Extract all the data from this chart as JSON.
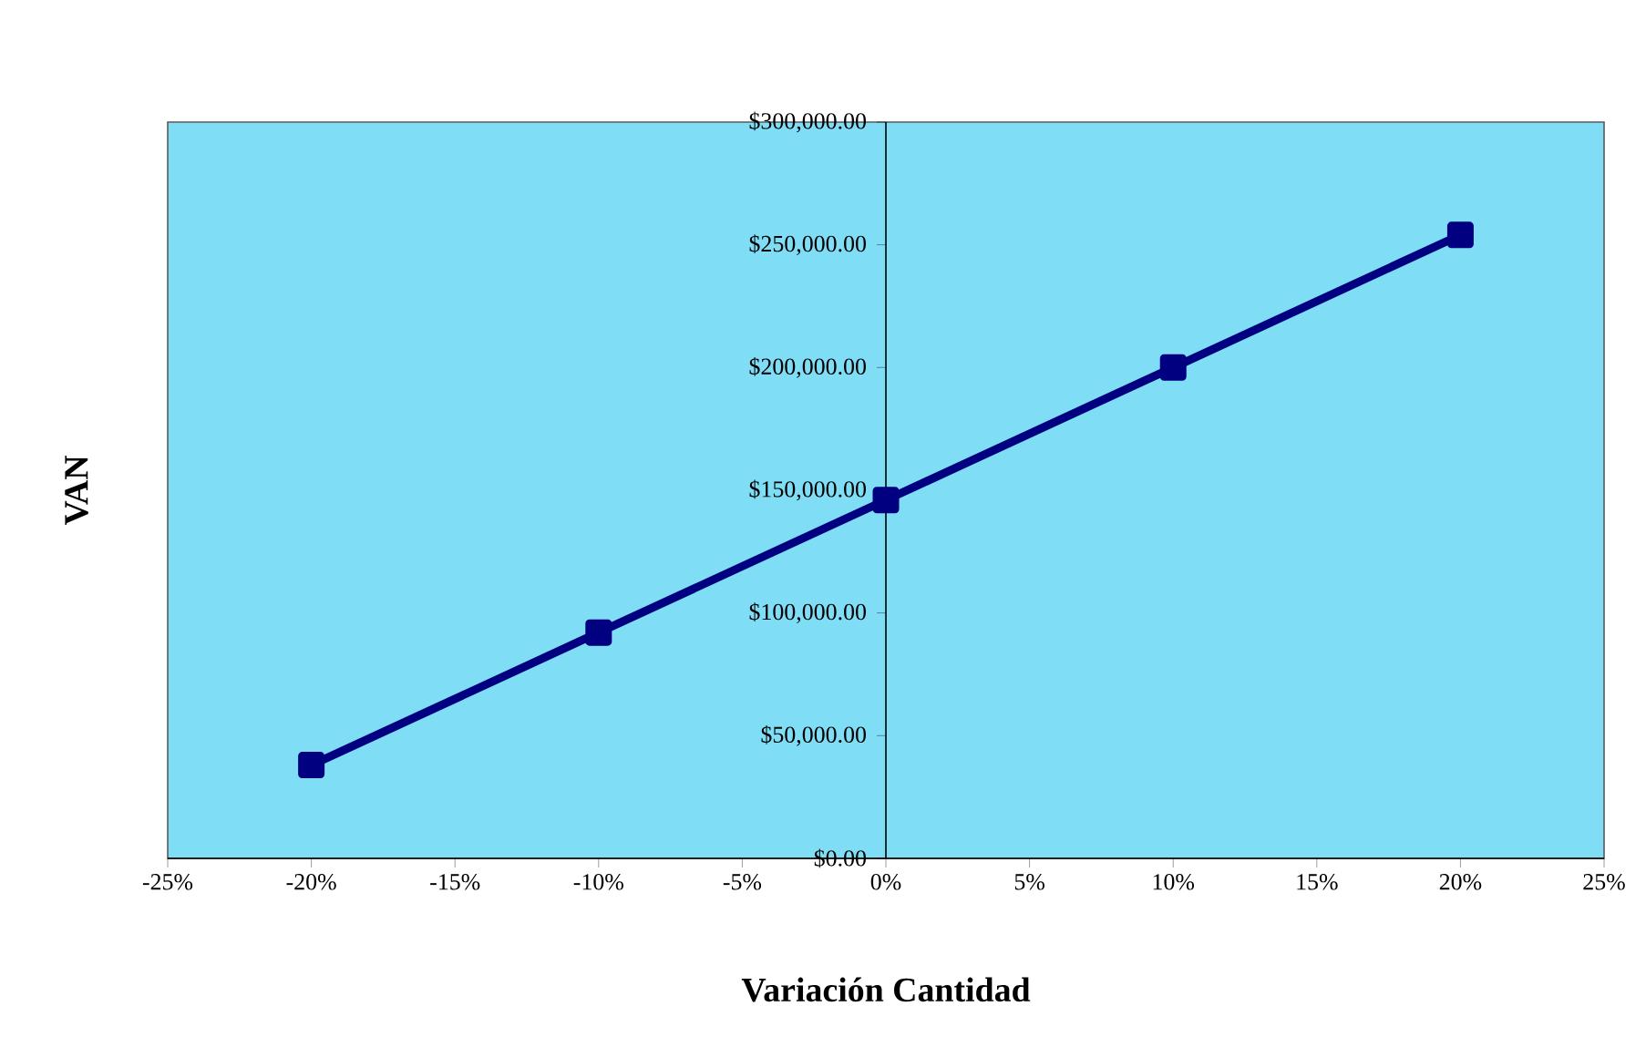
{
  "chart_data": {
    "type": "line",
    "xlabel": "Variación Cantidad",
    "ylabel": "VAN",
    "x": [
      -20,
      -10,
      0,
      10,
      20
    ],
    "series": [
      {
        "color": "#000080",
        "values": [
          38000,
          92000,
          146000,
          200000,
          254000
        ]
      }
    ],
    "marker": "square",
    "line_style": "solid",
    "xlim": [
      -25,
      25
    ],
    "xticks": [
      {
        "value": -25,
        "label": "-25%"
      },
      {
        "value": -20,
        "label": "-20%"
      },
      {
        "value": -15,
        "label": "-15%"
      },
      {
        "value": -10,
        "label": "-10%"
      },
      {
        "value": -5,
        "label": "-5%"
      },
      {
        "value": 0,
        "label": "0%"
      },
      {
        "value": 5,
        "label": "5%"
      },
      {
        "value": 10,
        "label": "10%"
      },
      {
        "value": 15,
        "label": "15%"
      },
      {
        "value": 20,
        "label": "20%"
      },
      {
        "value": 25,
        "label": "25%"
      }
    ],
    "ylim": [
      0,
      300000
    ],
    "yticks": [
      {
        "value": 0,
        "label": "$0.00"
      },
      {
        "value": 50000,
        "label": "$50,000.00"
      },
      {
        "value": 100000,
        "label": "$100,000.00"
      },
      {
        "value": 150000,
        "label": "$150,000.00"
      },
      {
        "value": 200000,
        "label": "$200,000.00"
      },
      {
        "value": 250000,
        "label": "$250,000.00"
      },
      {
        "value": 300000,
        "label": "$300,000.00"
      }
    ]
  }
}
